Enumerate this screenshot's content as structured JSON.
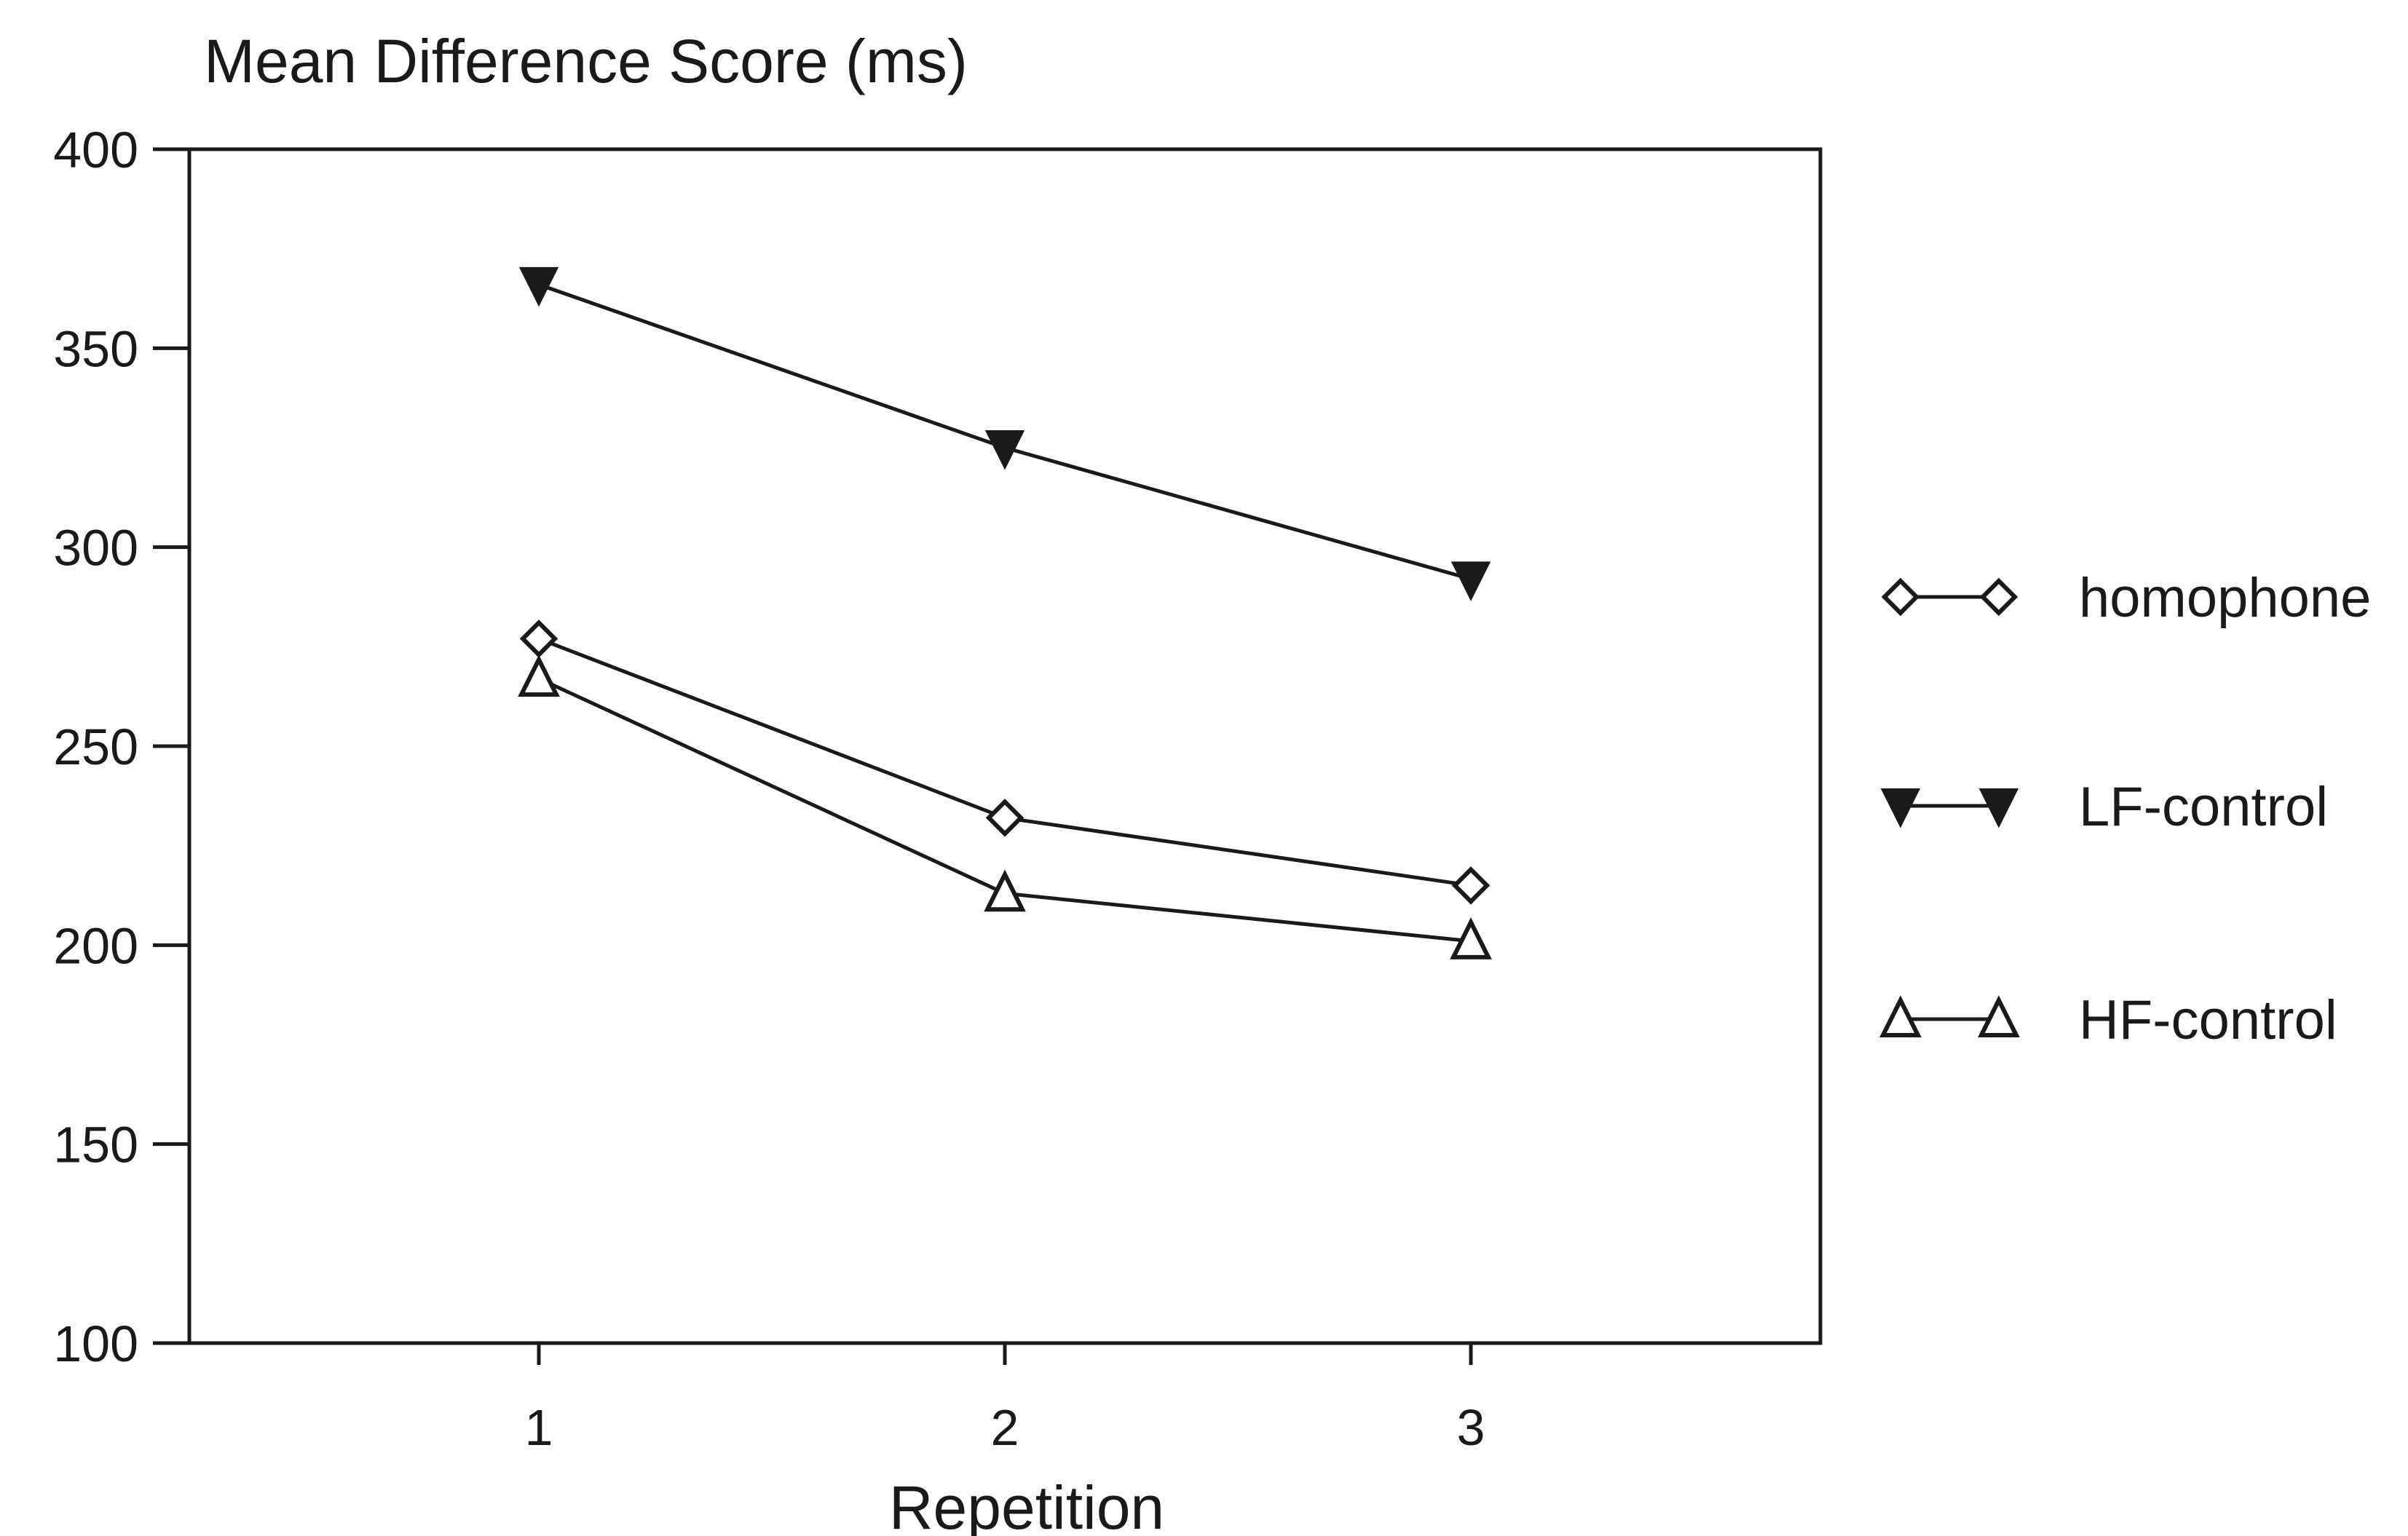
{
  "chart_data": {
    "type": "line",
    "title": "",
    "xlabel": "Repetition",
    "ylabel": "Mean Difference Score (ms)",
    "x": [
      1,
      2,
      3
    ],
    "xlim": [
      0.25,
      3.75
    ],
    "ylim": [
      100,
      400
    ],
    "yticks": [
      100,
      150,
      200,
      250,
      300,
      350,
      400
    ],
    "xticks": [
      1,
      2,
      3
    ],
    "grid": false,
    "legend_position": "right",
    "series": [
      {
        "name": "homophone",
        "marker": "diamond-open",
        "values": [
          277,
          232,
          215
        ]
      },
      {
        "name": "LF-control",
        "marker": "triangle-down-filled",
        "values": [
          366,
          325,
          292
        ]
      },
      {
        "name": "HF-control",
        "marker": "triangle-up-open",
        "values": [
          267,
          213,
          201
        ]
      }
    ],
    "colors": {
      "line": "#1a1a1a",
      "background": "#ffffff"
    }
  }
}
